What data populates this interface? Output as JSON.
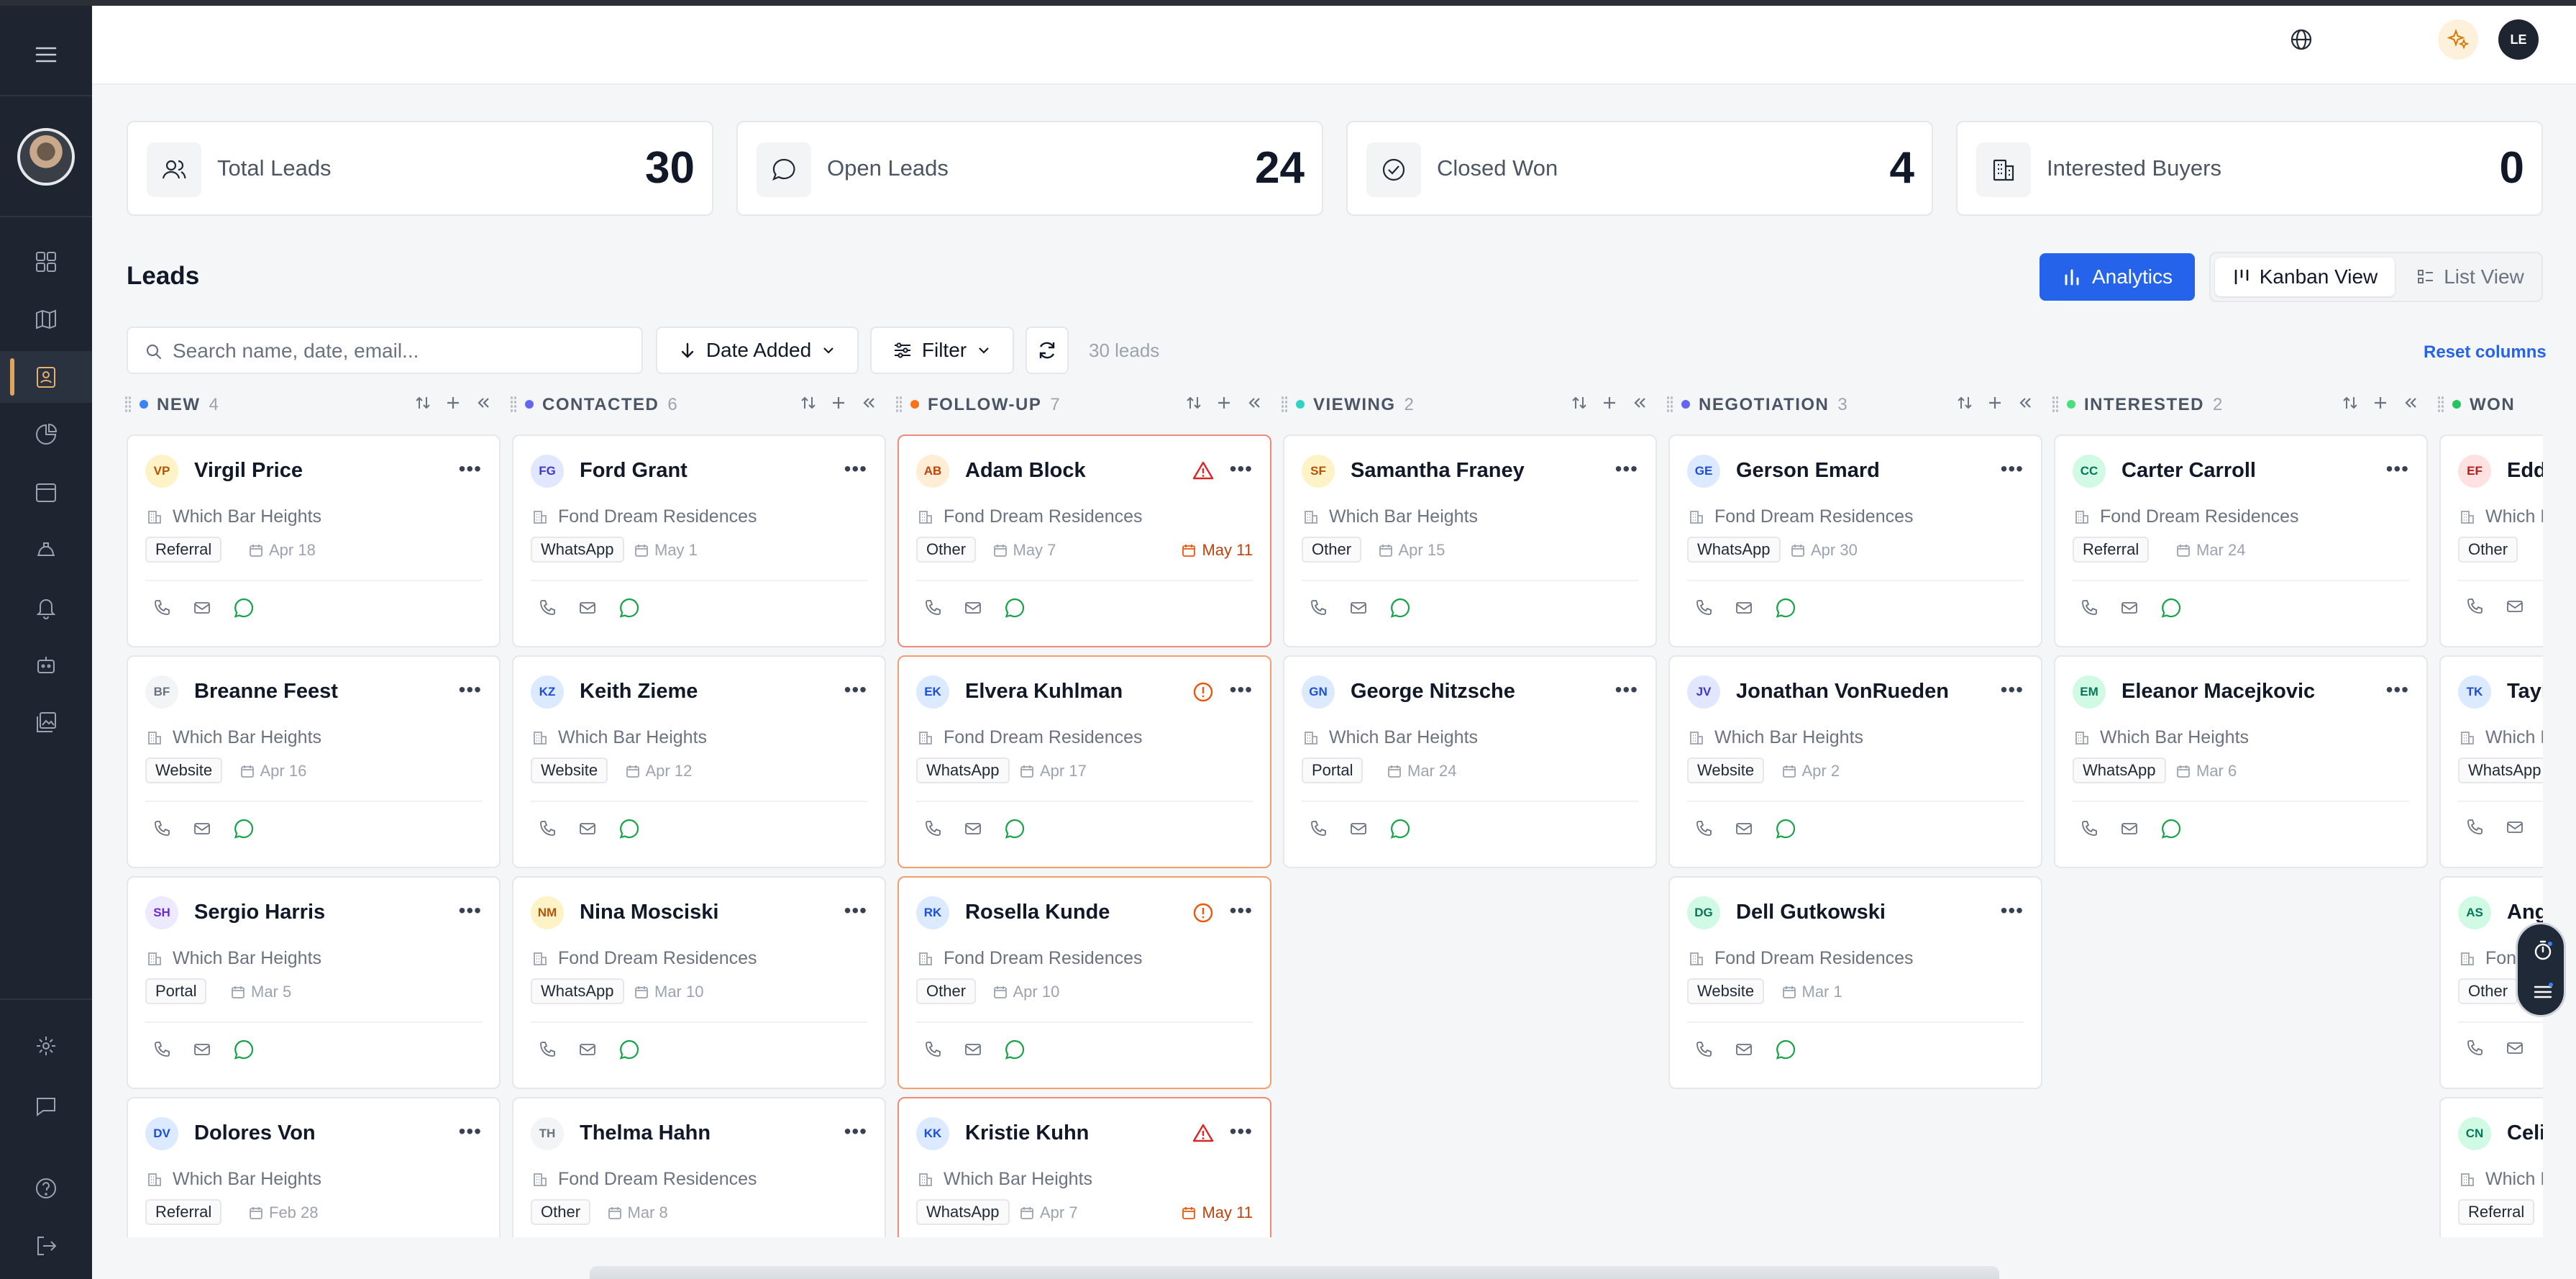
{
  "header": {
    "user_initials": "LE",
    "icons": [
      "globe-icon",
      "sparkle-icon"
    ]
  },
  "sidebar": {
    "items": [
      "dashboard",
      "map",
      "leads",
      "reports",
      "calendar",
      "properties",
      "notifications",
      "automation",
      "gallery",
      "settings",
      "messages",
      "help",
      "logout"
    ]
  },
  "stats": [
    {
      "label": "Total Leads",
      "value": "30",
      "icon": "users-icon"
    },
    {
      "label": "Open Leads",
      "value": "24",
      "icon": "chat-icon"
    },
    {
      "label": "Closed Won",
      "value": "4",
      "icon": "check-circle-icon"
    },
    {
      "label": "Interested Buyers",
      "value": "0",
      "icon": "building-icon"
    }
  ],
  "leads": {
    "title": "Leads",
    "analytics_label": "Analytics",
    "kanban_label": "Kanban View",
    "list_label": "List View",
    "search_placeholder": "Search name, date, email...",
    "sort_label": "Date Added",
    "filter_label": "Filter",
    "count_label": "30 leads",
    "reset_label": "Reset columns"
  },
  "columns": [
    {
      "name": "NEW",
      "count": "4",
      "color": "#3b82f6",
      "cards": [
        {
          "initials": "VP",
          "name": "Virgil Price",
          "property": "Which Bar Heights",
          "source": "Referral",
          "date": "Apr 18",
          "avatar_bg": "#fef3c7",
          "avatar_fg": "#b45309"
        },
        {
          "initials": "BF",
          "name": "Breanne Feest",
          "property": "Which Bar Heights",
          "source": "Website",
          "date": "Apr 16",
          "avatar_bg": "#f3f4f6",
          "avatar_fg": "#6b7280"
        },
        {
          "initials": "SH",
          "name": "Sergio Harris",
          "property": "Which Bar Heights",
          "source": "Portal",
          "date": "Mar 5",
          "avatar_bg": "#ede9fe",
          "avatar_fg": "#6d28d9"
        },
        {
          "initials": "DV",
          "name": "Dolores Von",
          "property": "Which Bar Heights",
          "source": "Referral",
          "date": "Feb 28",
          "avatar_bg": "#dbeafe",
          "avatar_fg": "#1d4ed8"
        }
      ]
    },
    {
      "name": "CONTACTED",
      "count": "6",
      "color": "#6366f1",
      "cards": [
        {
          "initials": "FG",
          "name": "Ford Grant",
          "property": "Fond Dream Residences",
          "source": "WhatsApp",
          "date": "May 1",
          "avatar_bg": "#e0e7ff",
          "avatar_fg": "#4338ca"
        },
        {
          "initials": "KZ",
          "name": "Keith Zieme",
          "property": "Which Bar Heights",
          "source": "Website",
          "date": "Apr 12",
          "avatar_bg": "#dbeafe",
          "avatar_fg": "#1d4ed8"
        },
        {
          "initials": "NM",
          "name": "Nina Mosciski",
          "property": "Fond Dream Residences",
          "source": "WhatsApp",
          "date": "Mar 10",
          "avatar_bg": "#fef3c7",
          "avatar_fg": "#b45309"
        },
        {
          "initials": "TH",
          "name": "Thelma Hahn",
          "property": "Fond Dream Residences",
          "source": "Other",
          "date": "Mar 8",
          "avatar_bg": "#f3f4f6",
          "avatar_fg": "#6b7280"
        }
      ]
    },
    {
      "name": "FOLLOW-UP",
      "count": "7",
      "color": "#f97316",
      "cards": [
        {
          "initials": "AB",
          "name": "Adam Block",
          "property": "Fond Dream Residences",
          "source": "Other",
          "date": "May 7",
          "due": "May 11",
          "flag": "err",
          "avatar_bg": "#ffedd5",
          "avatar_fg": "#c2410c"
        },
        {
          "initials": "EK",
          "name": "Elvera Kuhlman",
          "property": "Fond Dream Residences",
          "source": "WhatsApp",
          "date": "Apr 17",
          "flag": "warn",
          "avatar_bg": "#dbeafe",
          "avatar_fg": "#1d4ed8"
        },
        {
          "initials": "RK",
          "name": "Rosella Kunde",
          "property": "Fond Dream Residences",
          "source": "Other",
          "date": "Apr 10",
          "flag": "warn",
          "avatar_bg": "#dbeafe",
          "avatar_fg": "#1d4ed8"
        },
        {
          "initials": "KK",
          "name": "Kristie Kuhn",
          "property": "Which Bar Heights",
          "source": "WhatsApp",
          "date": "Apr 7",
          "due": "May 11",
          "flag": "err",
          "avatar_bg": "#dbeafe",
          "avatar_fg": "#1d4ed8"
        }
      ]
    },
    {
      "name": "VIEWING",
      "count": "2",
      "color": "#2dd4bf",
      "cards": [
        {
          "initials": "SF",
          "name": "Samantha Franey",
          "property": "Which Bar Heights",
          "source": "Other",
          "date": "Apr 15",
          "avatar_bg": "#fef3c7",
          "avatar_fg": "#b45309"
        },
        {
          "initials": "GN",
          "name": "George Nitzsche",
          "property": "Which Bar Heights",
          "source": "Portal",
          "date": "Mar 24",
          "avatar_bg": "#dbeafe",
          "avatar_fg": "#1d4ed8"
        }
      ]
    },
    {
      "name": "NEGOTIATION",
      "count": "3",
      "color": "#6366f1",
      "cards": [
        {
          "initials": "GE",
          "name": "Gerson Emard",
          "property": "Fond Dream Residences",
          "source": "WhatsApp",
          "date": "Apr 30",
          "avatar_bg": "#dbeafe",
          "avatar_fg": "#1d4ed8"
        },
        {
          "initials": "JV",
          "name": "Jonathan VonRueden",
          "property": "Which Bar Heights",
          "source": "Website",
          "date": "Apr 2",
          "avatar_bg": "#e0e7ff",
          "avatar_fg": "#4338ca"
        },
        {
          "initials": "DG",
          "name": "Dell Gutkowski",
          "property": "Fond Dream Residences",
          "source": "Website",
          "date": "Mar 1",
          "avatar_bg": "#d1fae5",
          "avatar_fg": "#047857"
        }
      ]
    },
    {
      "name": "INTERESTED",
      "count": "2",
      "color": "#4ade80",
      "cards": [
        {
          "initials": "CC",
          "name": "Carter Carroll",
          "property": "Fond Dream Residences",
          "source": "Referral",
          "date": "Mar 24",
          "avatar_bg": "#d1fae5",
          "avatar_fg": "#047857"
        },
        {
          "initials": "EM",
          "name": "Eleanor Macejkovic",
          "property": "Which Bar Heights",
          "source": "WhatsApp",
          "date": "Mar 6",
          "avatar_bg": "#d1fae5",
          "avatar_fg": "#047857"
        }
      ]
    },
    {
      "name": "WON",
      "count": "",
      "color": "#22c55e",
      "cards": [
        {
          "initials": "EF",
          "name": "Edd",
          "property": "Which B",
          "source": "Other",
          "date": "",
          "avatar_bg": "#fee2e2",
          "avatar_fg": "#b91c1c"
        },
        {
          "initials": "TK",
          "name": "Tayl",
          "property": "Which B",
          "source": "WhatsApp",
          "date": "",
          "avatar_bg": "#dbeafe",
          "avatar_fg": "#1d4ed8"
        },
        {
          "initials": "AS",
          "name": "Ang",
          "property": "Fond",
          "source": "Other",
          "date": "",
          "avatar_bg": "#d1fae5",
          "avatar_fg": "#047857"
        },
        {
          "initials": "CN",
          "name": "Celi",
          "property": "Which B",
          "source": "Referral",
          "date": "",
          "avatar_bg": "#d1fae5",
          "avatar_fg": "#047857"
        }
      ]
    }
  ]
}
